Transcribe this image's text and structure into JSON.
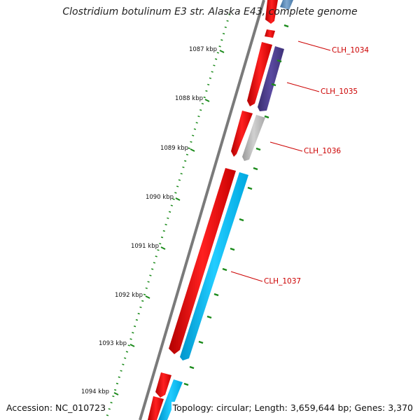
{
  "title": "Clostridium botulinum E3 str. Alaska E43, complete genome",
  "accession": "Accession: NC_010723",
  "summary": "Topology: circular; Length: 3,659,644 bp; Genes: 3,370",
  "ticks": [
    "1087 kbp",
    "1088 kbp",
    "1089 kbp",
    "1090 kbp",
    "1091 kbp",
    "1092 kbp",
    "1093 kbp",
    "1094 kbp"
  ],
  "genes": [
    {
      "label": "CLH_1034",
      "color": "#4a3c8c"
    },
    {
      "label": "CLH_1035",
      "color": "#4a3c8c"
    },
    {
      "label": "CLH_1036",
      "color": "#bbbbbb"
    },
    {
      "label": "CLH_1037",
      "color": "#00bfff"
    }
  ],
  "colors": {
    "cds": "#ff0000",
    "backbone": "#808080",
    "tick_marks": "#1a8a1a",
    "labels": "#cc0000"
  }
}
